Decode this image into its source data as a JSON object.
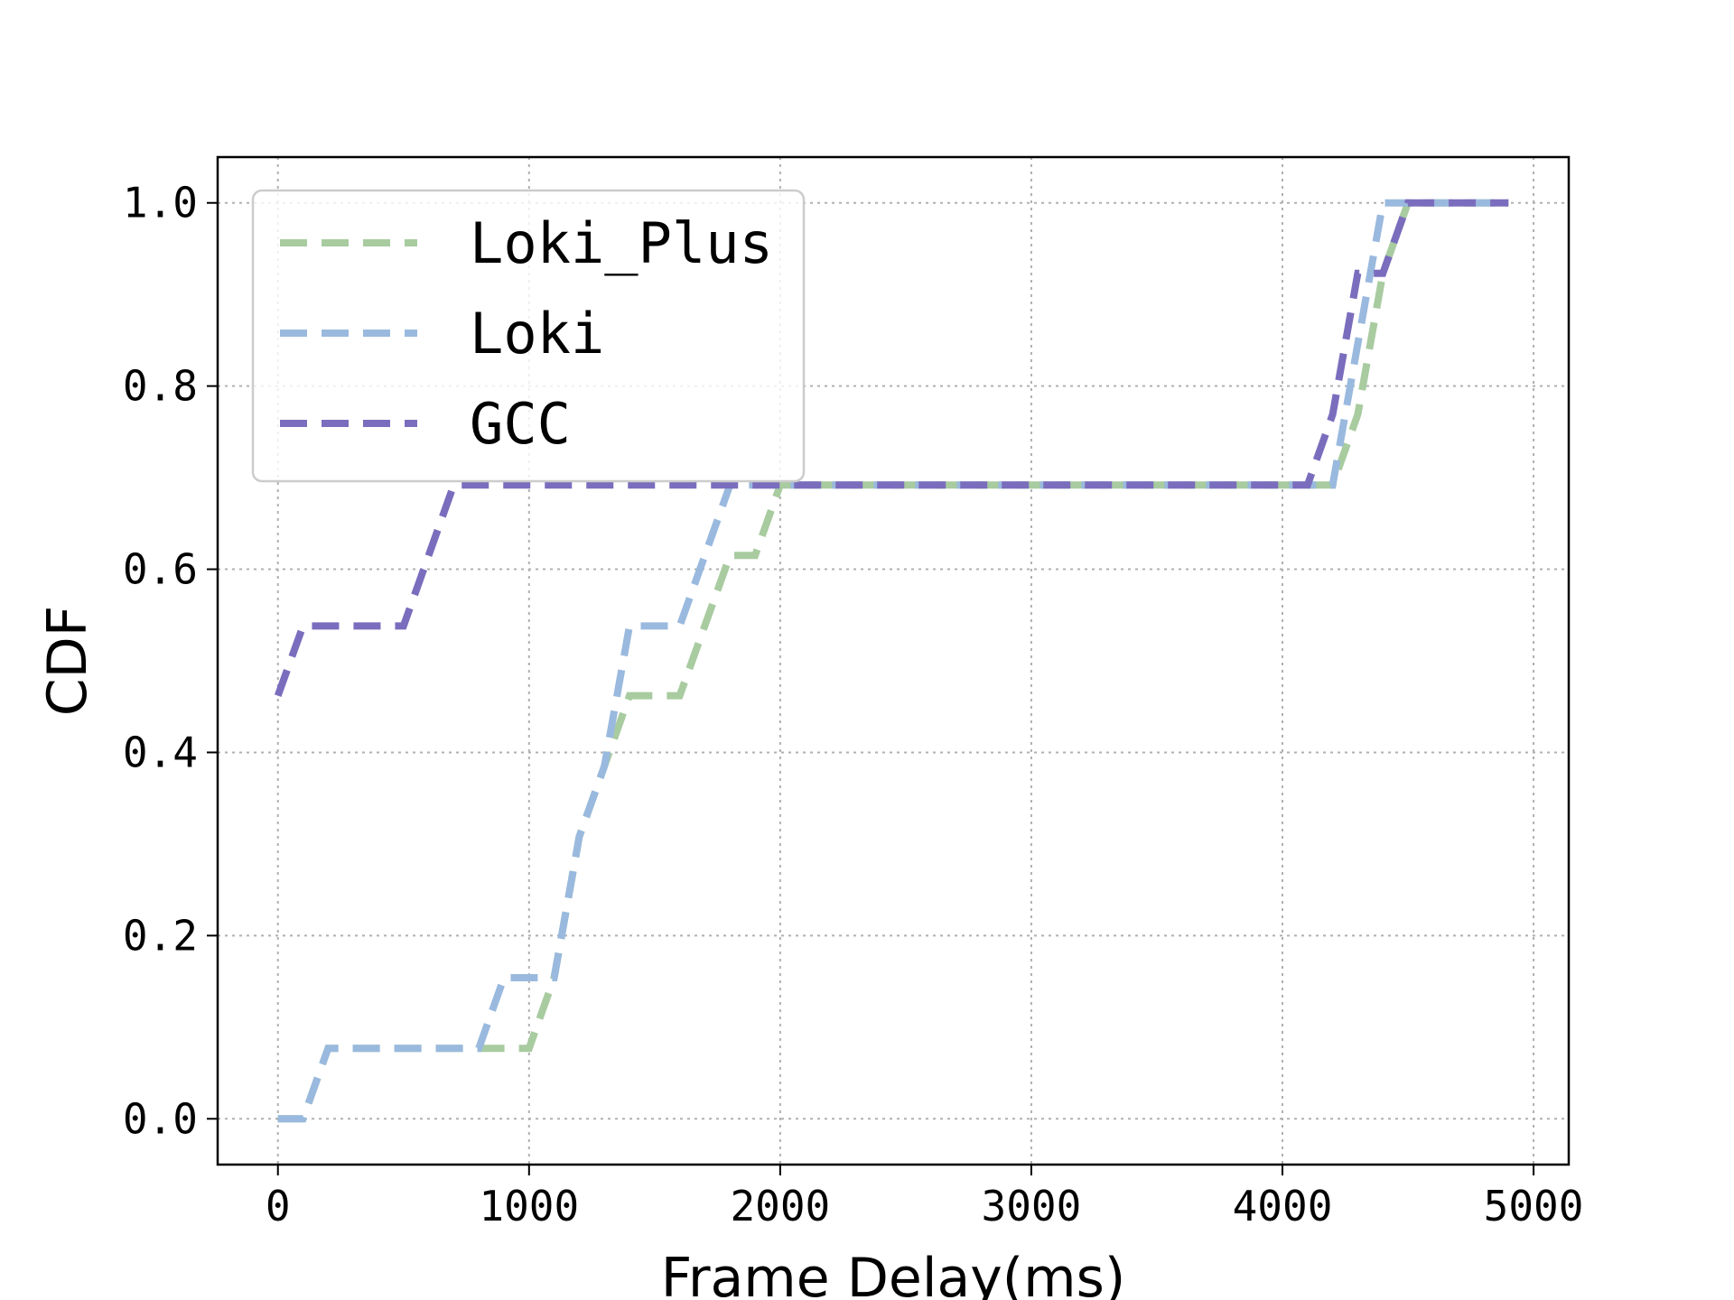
{
  "chart_data": {
    "type": "line",
    "title": "",
    "xlabel": "Frame Delay(ms)",
    "ylabel": "CDF",
    "xlim": [
      -240,
      5140
    ],
    "ylim": [
      -0.05,
      1.05
    ],
    "x_ticks": [
      0,
      1000,
      2000,
      3000,
      4000,
      5000
    ],
    "x_tick_labels": [
      "0",
      "1000",
      "2000",
      "3000",
      "4000",
      "5000"
    ],
    "y_ticks": [
      0.0,
      0.2,
      0.4,
      0.6,
      0.8,
      1.0
    ],
    "y_tick_labels": [
      "0.0",
      "0.2",
      "0.4",
      "0.6",
      "0.8",
      "1.0"
    ],
    "grid": true,
    "line_style": "dashed",
    "legend_position": "top-left",
    "series": [
      {
        "name": "Loki_Plus",
        "color": "#a8cba0",
        "points": [
          [
            0,
            0
          ],
          [
            100,
            0
          ],
          [
            200,
            0.077
          ],
          [
            800,
            0.077
          ],
          [
            1000,
            0.077
          ],
          [
            1100,
            0.154
          ],
          [
            1200,
            0.308
          ],
          [
            1300,
            0.385
          ],
          [
            1400,
            0.462
          ],
          [
            1600,
            0.462
          ],
          [
            1800,
            0.615
          ],
          [
            1900,
            0.615
          ],
          [
            2000,
            0.692
          ],
          [
            4200,
            0.692
          ],
          [
            4300,
            0.769
          ],
          [
            4400,
            0.923
          ],
          [
            4500,
            1.0
          ],
          [
            4900,
            1.0
          ]
        ]
      },
      {
        "name": "Loki",
        "color": "#9ab9de",
        "points": [
          [
            0,
            0
          ],
          [
            100,
            0
          ],
          [
            200,
            0.077
          ],
          [
            800,
            0.077
          ],
          [
            900,
            0.154
          ],
          [
            1100,
            0.154
          ],
          [
            1200,
            0.308
          ],
          [
            1300,
            0.385
          ],
          [
            1400,
            0.538
          ],
          [
            1600,
            0.538
          ],
          [
            1800,
            0.692
          ],
          [
            2000,
            0.692
          ],
          [
            4200,
            0.692
          ],
          [
            4300,
            0.846
          ],
          [
            4400,
            1.0
          ],
          [
            4900,
            1.0
          ]
        ]
      },
      {
        "name": "GCC",
        "color": "#7b6dbd",
        "points": [
          [
            0,
            0.462
          ],
          [
            100,
            0.538
          ],
          [
            500,
            0.538
          ],
          [
            700,
            0.692
          ],
          [
            4100,
            0.692
          ],
          [
            4200,
            0.769
          ],
          [
            4300,
            0.923
          ],
          [
            4400,
            0.923
          ],
          [
            4500,
            1.0
          ],
          [
            4900,
            1.0
          ]
        ]
      }
    ]
  }
}
